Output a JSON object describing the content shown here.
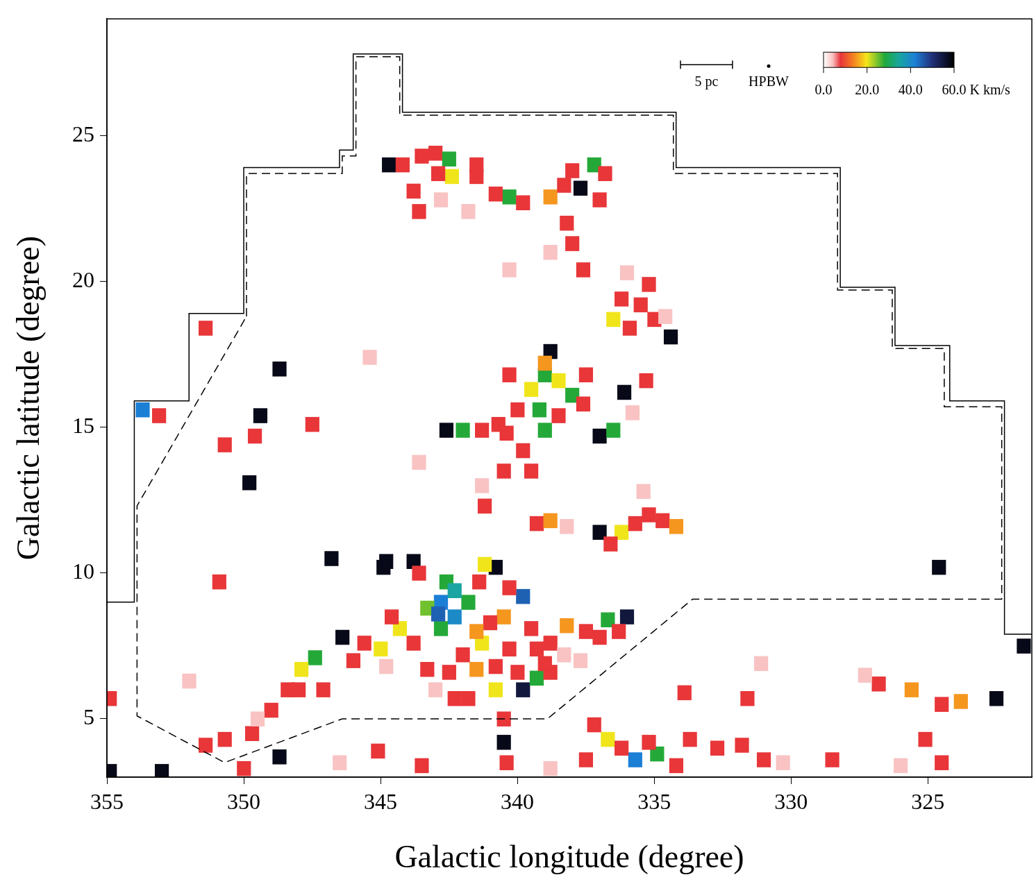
{
  "chart_data": {
    "type": "heatmap",
    "x_label": "Galactic longitude (degree)",
    "y_label": "Galactic latitude (degree)",
    "xlim": [
      355,
      321.2
    ],
    "ylim": [
      3,
      29
    ],
    "xticks": [
      355,
      350,
      345,
      340,
      335,
      330,
      325
    ],
    "yticks": [
      5,
      10,
      15,
      20,
      25
    ],
    "grid": false,
    "colorbar": {
      "range": [
        0,
        60
      ],
      "ticks": [
        {
          "value": 0,
          "label": "0.0"
        },
        {
          "value": 20,
          "label": "20.0"
        },
        {
          "value": 40,
          "label": "40.0"
        },
        {
          "value": 60,
          "label": "60.0 K km/s"
        }
      ]
    },
    "scale_bar": {
      "label": "5 pc",
      "length": 1.9
    },
    "beam": {
      "label": "HPBW"
    },
    "boundaries": [
      {
        "line_style": "solid",
        "points": [
          [
            355,
            9
          ],
          [
            354,
            9
          ],
          [
            354,
            15.9
          ],
          [
            352,
            15.9
          ],
          [
            352,
            18.9
          ],
          [
            350,
            18.9
          ],
          [
            350,
            23.9
          ],
          [
            346.5,
            23.9
          ],
          [
            346.5,
            24.5
          ],
          [
            346,
            24.5
          ],
          [
            346,
            27.8
          ],
          [
            344.2,
            27.8
          ],
          [
            344.2,
            25.8
          ],
          [
            334.2,
            25.8
          ],
          [
            334.2,
            23.9
          ],
          [
            328.2,
            23.9
          ],
          [
            328.2,
            19.8
          ],
          [
            326.2,
            19.8
          ],
          [
            326.2,
            17.8
          ],
          [
            324.2,
            17.8
          ],
          [
            324.2,
            15.9
          ],
          [
            322.2,
            15.9
          ],
          [
            322.2,
            7.9
          ],
          [
            321.2,
            7.9
          ]
        ]
      },
      {
        "line_style": "dashed",
        "points": [
          [
            349.9,
            18.8
          ],
          [
            349.9,
            23.7
          ],
          [
            346.4,
            23.7
          ],
          [
            346.4,
            24.3
          ],
          [
            345.9,
            24.3
          ],
          [
            345.9,
            27.7
          ],
          [
            344.3,
            27.7
          ],
          [
            344.3,
            25.7
          ],
          [
            334.3,
            25.7
          ],
          [
            334.3,
            23.7
          ],
          [
            328.3,
            23.7
          ],
          [
            328.3,
            19.7
          ],
          [
            326.3,
            19.7
          ],
          [
            326.3,
            17.7
          ],
          [
            324.4,
            17.7
          ],
          [
            324.4,
            15.7
          ],
          [
            322.3,
            15.7
          ],
          [
            322.3,
            9.1
          ],
          [
            333.6,
            9.1
          ],
          [
            338.9,
            5.0
          ],
          [
            346.4,
            5.0
          ],
          [
            350.7,
            3.5
          ],
          [
            353.9,
            5.1
          ],
          [
            353.9,
            12.3
          ],
          [
            349.9,
            18.8
          ]
        ]
      }
    ],
    "cell_size": 0.5,
    "cells": [
      [
        344.7,
        24.0,
        58
      ],
      [
        344.2,
        24.0,
        8
      ],
      [
        343.5,
        24.3,
        8
      ],
      [
        343.0,
        24.4,
        8
      ],
      [
        342.5,
        24.2,
        28
      ],
      [
        342.4,
        23.6,
        20
      ],
      [
        342.9,
        23.7,
        8
      ],
      [
        341.5,
        23.6,
        8
      ],
      [
        343.8,
        23.1,
        8
      ],
      [
        343.6,
        22.4,
        8
      ],
      [
        342.8,
        22.8,
        4
      ],
      [
        341.8,
        22.4,
        4
      ],
      [
        340.3,
        22.9,
        28
      ],
      [
        340.8,
        23.0,
        8
      ],
      [
        339.8,
        22.7,
        8
      ],
      [
        341.5,
        24.0,
        8
      ],
      [
        338.8,
        22.9,
        15
      ],
      [
        338.3,
        23.3,
        8
      ],
      [
        337.7,
        23.2,
        58
      ],
      [
        337.2,
        24.0,
        28
      ],
      [
        336.8,
        23.7,
        8
      ],
      [
        338.0,
        23.8,
        8
      ],
      [
        338.2,
        22.0,
        8
      ],
      [
        338.0,
        21.3,
        8
      ],
      [
        337.6,
        20.4,
        8
      ],
      [
        338.8,
        21.0,
        4
      ],
      [
        337.0,
        22.8,
        8
      ],
      [
        336.2,
        19.4,
        8
      ],
      [
        336.5,
        18.7,
        20
      ],
      [
        335.9,
        18.4,
        8
      ],
      [
        335.5,
        19.2,
        8
      ],
      [
        335.0,
        18.7,
        8
      ],
      [
        334.4,
        18.1,
        58
      ],
      [
        335.2,
        19.9,
        8
      ],
      [
        336.0,
        20.3,
        4
      ],
      [
        334.6,
        18.8,
        4
      ],
      [
        338.8,
        17.6,
        58
      ],
      [
        339.0,
        16.8,
        28
      ],
      [
        338.5,
        16.6,
        20
      ],
      [
        338.0,
        16.1,
        28
      ],
      [
        339.2,
        15.6,
        28
      ],
      [
        339.5,
        16.3,
        20
      ],
      [
        339.0,
        14.9,
        28
      ],
      [
        339.8,
        14.2,
        8
      ],
      [
        337.5,
        16.8,
        8
      ],
      [
        340.3,
        16.8,
        8
      ],
      [
        340.0,
        15.6,
        8
      ],
      [
        338.5,
        15.4,
        8
      ],
      [
        337.6,
        15.8,
        8
      ],
      [
        339.0,
        17.2,
        15
      ],
      [
        342.6,
        14.9,
        58
      ],
      [
        342.0,
        14.9,
        28
      ],
      [
        341.3,
        14.9,
        8
      ],
      [
        340.7,
        15.1,
        8
      ],
      [
        340.4,
        14.8,
        8
      ],
      [
        337.0,
        14.7,
        58
      ],
      [
        336.5,
        14.9,
        28
      ],
      [
        336.1,
        16.2,
        58
      ],
      [
        335.3,
        16.6,
        8
      ],
      [
        335.8,
        15.5,
        4
      ],
      [
        340.5,
        13.5,
        8
      ],
      [
        339.5,
        13.5,
        8
      ],
      [
        341.3,
        13.0,
        4
      ],
      [
        341.2,
        12.3,
        8
      ],
      [
        339.3,
        11.7,
        8
      ],
      [
        338.8,
        11.8,
        15
      ],
      [
        338.2,
        11.6,
        4
      ],
      [
        337.0,
        11.4,
        58
      ],
      [
        336.2,
        11.4,
        20
      ],
      [
        335.7,
        11.7,
        8
      ],
      [
        335.2,
        12.0,
        8
      ],
      [
        334.7,
        11.8,
        8
      ],
      [
        334.2,
        11.6,
        15
      ],
      [
        336.6,
        11.0,
        8
      ],
      [
        342.8,
        9.0,
        42
      ],
      [
        342.3,
        8.5,
        40
      ],
      [
        342.6,
        9.7,
        28
      ],
      [
        342.8,
        8.1,
        28
      ],
      [
        343.3,
        8.8,
        25
      ],
      [
        341.8,
        9.0,
        28
      ],
      [
        342.3,
        9.4,
        35
      ],
      [
        342.9,
        8.6,
        45
      ],
      [
        343.8,
        10.4,
        58
      ],
      [
        344.8,
        10.4,
        58
      ],
      [
        340.8,
        10.2,
        58
      ],
      [
        339.8,
        9.2,
        45
      ],
      [
        340.5,
        8.5,
        15
      ],
      [
        341.3,
        7.6,
        20
      ],
      [
        341.5,
        6.7,
        15
      ],
      [
        340.8,
        6.0,
        20
      ],
      [
        339.8,
        6.0,
        55
      ],
      [
        339.3,
        6.4,
        28
      ],
      [
        338.8,
        6.6,
        8
      ],
      [
        341.8,
        5.7,
        8
      ],
      [
        343.3,
        6.7,
        8
      ],
      [
        343.8,
        7.6,
        8
      ],
      [
        344.3,
        8.1,
        20
      ],
      [
        344.6,
        8.5,
        8
      ],
      [
        343.6,
        10.0,
        8
      ],
      [
        341.4,
        9.7,
        8
      ],
      [
        340.3,
        9.5,
        8
      ],
      [
        339.5,
        8.1,
        8
      ],
      [
        339.3,
        7.4,
        8
      ],
      [
        340.3,
        7.4,
        8
      ],
      [
        342.5,
        6.6,
        8
      ],
      [
        342.3,
        5.7,
        8
      ],
      [
        341.0,
        8.3,
        8
      ],
      [
        341.5,
        8.0,
        15
      ],
      [
        342.0,
        7.2,
        8
      ],
      [
        340.8,
        6.8,
        8
      ],
      [
        343.0,
        6.0,
        4
      ],
      [
        340.0,
        6.6,
        8
      ],
      [
        341.2,
        10.3,
        20
      ],
      [
        338.2,
        8.2,
        15
      ],
      [
        337.5,
        8.0,
        8
      ],
      [
        336.7,
        8.4,
        28
      ],
      [
        336.0,
        8.5,
        55
      ],
      [
        336.3,
        8.0,
        8
      ],
      [
        337.0,
        7.8,
        8
      ],
      [
        338.8,
        7.6,
        8
      ],
      [
        339.0,
        6.9,
        8
      ],
      [
        338.3,
        7.2,
        4
      ],
      [
        337.7,
        7.0,
        4
      ],
      [
        345.6,
        7.6,
        8
      ],
      [
        346.4,
        7.8,
        58
      ],
      [
        347.4,
        7.1,
        28
      ],
      [
        347.9,
        6.7,
        20
      ],
      [
        348.4,
        6.0,
        8
      ],
      [
        349.0,
        5.3,
        8
      ],
      [
        349.7,
        4.5,
        8
      ],
      [
        350.7,
        4.3,
        8
      ],
      [
        351.4,
        4.1,
        8
      ],
      [
        347.1,
        6.0,
        8
      ],
      [
        345.0,
        7.4,
        20
      ],
      [
        346.0,
        7.0,
        8
      ],
      [
        344.8,
        6.8,
        4
      ],
      [
        348.0,
        6.0,
        8
      ],
      [
        349.5,
        5.0,
        4
      ],
      [
        340.5,
        5.0,
        8
      ],
      [
        340.5,
        4.2,
        58
      ],
      [
        340.4,
        3.5,
        8
      ],
      [
        336.7,
        4.3,
        20
      ],
      [
        335.7,
        3.6,
        42
      ],
      [
        334.9,
        3.8,
        28
      ],
      [
        337.2,
        4.8,
        8
      ],
      [
        336.2,
        4.0,
        8
      ],
      [
        335.2,
        4.2,
        8
      ],
      [
        334.2,
        3.4,
        8
      ],
      [
        333.7,
        4.3,
        8
      ],
      [
        332.7,
        4.0,
        8
      ],
      [
        331.8,
        4.1,
        8
      ],
      [
        331.0,
        3.6,
        8
      ],
      [
        330.3,
        3.5,
        4
      ],
      [
        333.9,
        5.9,
        8
      ],
      [
        337.5,
        3.6,
        8
      ],
      [
        338.8,
        3.3,
        4
      ],
      [
        326.8,
        6.2,
        8
      ],
      [
        325.6,
        6.0,
        15
      ],
      [
        324.5,
        5.5,
        8
      ],
      [
        323.8,
        5.6,
        15
      ],
      [
        322.5,
        5.7,
        58
      ],
      [
        325.1,
        4.3,
        8
      ],
      [
        327.3,
        6.5,
        4
      ],
      [
        331.1,
        6.9,
        4
      ],
      [
        331.6,
        5.7,
        8
      ],
      [
        321.5,
        7.5,
        58
      ],
      [
        328.5,
        3.6,
        8
      ],
      [
        326.0,
        3.4,
        4
      ],
      [
        324.5,
        3.5,
        8
      ],
      [
        353.7,
        15.6,
        42
      ],
      [
        353.1,
        15.4,
        8
      ],
      [
        351.4,
        18.4,
        8
      ],
      [
        349.4,
        15.4,
        58
      ],
      [
        349.6,
        14.7,
        8
      ],
      [
        349.8,
        13.1,
        58
      ],
      [
        348.7,
        17.0,
        58
      ],
      [
        346.8,
        10.5,
        58
      ],
      [
        344.9,
        10.2,
        58
      ],
      [
        350.7,
        14.4,
        8
      ],
      [
        347.5,
        15.1,
        8
      ],
      [
        350.9,
        9.7,
        8
      ],
      [
        352.0,
        6.3,
        4
      ],
      [
        354.9,
        5.7,
        8
      ],
      [
        324.6,
        10.2,
        58
      ],
      [
        343.6,
        13.8,
        4
      ],
      [
        345.4,
        17.4,
        4
      ],
      [
        340.3,
        20.4,
        4
      ],
      [
        335.4,
        12.8,
        4
      ],
      [
        353.0,
        3.2,
        58
      ],
      [
        354.9,
        3.2,
        58
      ],
      [
        348.7,
        3.7,
        58
      ],
      [
        345.1,
        3.9,
        8
      ],
      [
        350.0,
        3.3,
        8
      ],
      [
        343.5,
        3.4,
        8
      ],
      [
        346.5,
        3.5,
        4
      ]
    ]
  }
}
